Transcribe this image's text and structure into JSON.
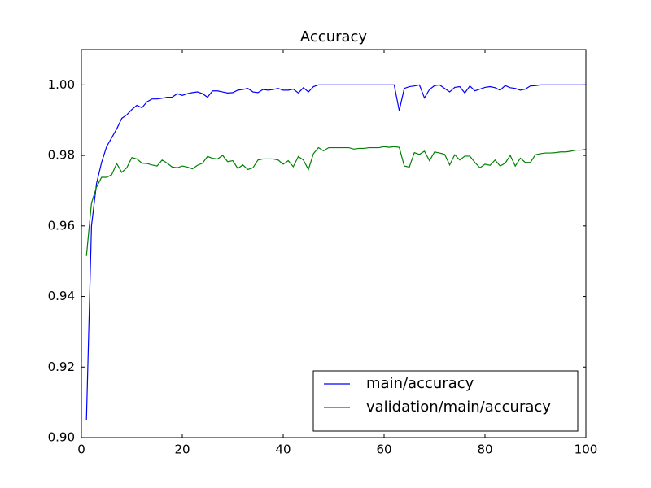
{
  "chart_data": {
    "type": "line",
    "title": "Accuracy",
    "x": [
      1,
      2,
      3,
      4,
      5,
      6,
      7,
      8,
      9,
      10,
      11,
      12,
      13,
      14,
      15,
      16,
      17,
      18,
      19,
      20,
      21,
      22,
      23,
      24,
      25,
      26,
      27,
      28,
      29,
      30,
      31,
      32,
      33,
      34,
      35,
      36,
      37,
      38,
      39,
      40,
      41,
      42,
      43,
      44,
      45,
      46,
      47,
      48,
      49,
      50,
      51,
      52,
      53,
      54,
      55,
      56,
      57,
      58,
      59,
      60,
      61,
      62,
      63,
      64,
      65,
      66,
      67,
      68,
      69,
      70,
      71,
      72,
      73,
      74,
      75,
      76,
      77,
      78,
      79,
      80,
      81,
      82,
      83,
      84,
      85,
      86,
      87,
      88,
      89,
      90,
      91,
      92,
      93,
      94,
      95,
      96,
      97,
      98,
      99,
      100
    ],
    "series": [
      {
        "name": "main/accuracy",
        "color": "#0000ff",
        "values": [
          0.905,
          0.96,
          0.972,
          0.978,
          0.9825,
          0.985,
          0.9875,
          0.9905,
          0.9915,
          0.993,
          0.9942,
          0.9935,
          0.9952,
          0.996,
          0.996,
          0.9962,
          0.9965,
          0.9965,
          0.9975,
          0.997,
          0.9975,
          0.9978,
          0.998,
          0.9975,
          0.9965,
          0.9983,
          0.9983,
          0.998,
          0.9977,
          0.9978,
          0.9985,
          0.9987,
          0.999,
          0.998,
          0.9978,
          0.9987,
          0.9985,
          0.9987,
          0.999,
          0.9985,
          0.9985,
          0.9988,
          0.9977,
          0.9992,
          0.998,
          0.9995,
          1,
          1,
          1,
          1,
          1,
          1,
          1,
          1,
          1,
          1,
          1,
          1,
          1,
          1,
          1,
          1,
          0.9927,
          0.999,
          0.9995,
          0.9997,
          1,
          0.9963,
          0.9987,
          0.9998,
          1,
          0.999,
          0.998,
          0.9993,
          0.9995,
          0.9977,
          0.9997,
          0.9983,
          0.9988,
          0.9993,
          0.9995,
          0.9992,
          0.9985,
          0.9998,
          0.9992,
          0.999,
          0.9985,
          0.9988,
          0.9997,
          0.9998,
          1,
          1,
          1,
          1,
          1,
          1,
          1,
          1,
          1,
          1
        ]
      },
      {
        "name": "validation/main/accuracy",
        "color": "#008000",
        "values": [
          0.9515,
          0.9665,
          0.971,
          0.9738,
          0.9738,
          0.9745,
          0.9777,
          0.9752,
          0.9765,
          0.9794,
          0.979,
          0.9778,
          0.9777,
          0.9773,
          0.977,
          0.9787,
          0.9778,
          0.9767,
          0.9765,
          0.977,
          0.9767,
          0.9762,
          0.9772,
          0.9778,
          0.9797,
          0.9792,
          0.979,
          0.98,
          0.9782,
          0.9785,
          0.9763,
          0.9773,
          0.976,
          0.9765,
          0.9787,
          0.979,
          0.979,
          0.979,
          0.9787,
          0.9775,
          0.9785,
          0.9768,
          0.9797,
          0.9787,
          0.976,
          0.9805,
          0.9822,
          0.9813,
          0.9822,
          0.9822,
          0.9822,
          0.9822,
          0.9822,
          0.9818,
          0.982,
          0.982,
          0.9822,
          0.9822,
          0.9822,
          0.9825,
          0.9823,
          0.9825,
          0.9823,
          0.977,
          0.9767,
          0.9808,
          0.9803,
          0.9812,
          0.9785,
          0.981,
          0.9807,
          0.9803,
          0.9773,
          0.9802,
          0.9787,
          0.9798,
          0.9798,
          0.978,
          0.9765,
          0.9775,
          0.9772,
          0.9787,
          0.977,
          0.9778,
          0.98,
          0.977,
          0.9792,
          0.978,
          0.978,
          0.9802,
          0.9805,
          0.9807,
          0.9807,
          0.9808,
          0.981,
          0.981,
          0.9812,
          0.9815,
          0.9815,
          0.9817
        ]
      }
    ],
    "xlim": [
      0,
      100
    ],
    "xticks": [
      0,
      20,
      40,
      60,
      80,
      100
    ],
    "ylim": [
      0.9,
      1.01
    ],
    "yticks": [
      {
        "value": 0.9,
        "label": "0.90"
      },
      0.92,
      0.94,
      0.96,
      0.98,
      {
        "value": 1.0,
        "label": "1.00"
      }
    ],
    "legend": "lower right"
  }
}
